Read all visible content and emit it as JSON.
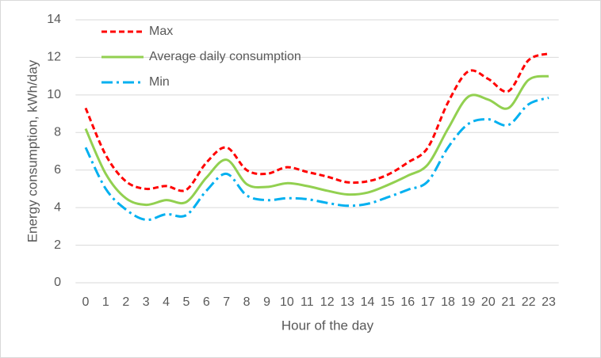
{
  "chart_data": {
    "type": "line",
    "x_label": "Hour of the day",
    "y_label": "Energy consumption, kWh/day",
    "categories": [
      "0",
      "1",
      "2",
      "3",
      "4",
      "5",
      "6",
      "7",
      "8",
      "9",
      "10",
      "11",
      "12",
      "13",
      "14",
      "15",
      "16",
      "17",
      "18",
      "19",
      "20",
      "21",
      "22",
      "23"
    ],
    "series": [
      {
        "name": "Max",
        "color": "#ff0000",
        "linestyle": "dashed",
        "values": [
          9.3,
          6.8,
          5.4,
          5.0,
          5.15,
          4.95,
          6.4,
          7.2,
          6.0,
          5.8,
          6.15,
          5.9,
          5.65,
          5.35,
          5.4,
          5.75,
          6.4,
          7.2,
          9.6,
          11.25,
          10.85,
          10.2,
          11.85,
          12.2
        ]
      },
      {
        "name": "Average daily consumption",
        "color": "#92d050",
        "linestyle": "solid",
        "values": [
          8.2,
          5.8,
          4.5,
          4.15,
          4.4,
          4.3,
          5.6,
          6.55,
          5.25,
          5.1,
          5.3,
          5.15,
          4.9,
          4.7,
          4.8,
          5.2,
          5.7,
          6.3,
          8.2,
          9.9,
          9.75,
          9.3,
          10.8,
          11.0
        ]
      },
      {
        "name": "Min",
        "color": "#00b0f0",
        "linestyle": "dashdot",
        "values": [
          7.2,
          5.0,
          3.9,
          3.35,
          3.65,
          3.6,
          4.9,
          5.8,
          4.65,
          4.4,
          4.5,
          4.45,
          4.25,
          4.1,
          4.2,
          4.55,
          4.95,
          5.4,
          7.2,
          8.45,
          8.7,
          8.4,
          9.5,
          9.85
        ]
      }
    ],
    "ylim": [
      0,
      14
    ],
    "yticks": [
      0,
      2,
      4,
      6,
      8,
      10,
      12,
      14
    ],
    "grid": true,
    "legend": "upper left"
  }
}
